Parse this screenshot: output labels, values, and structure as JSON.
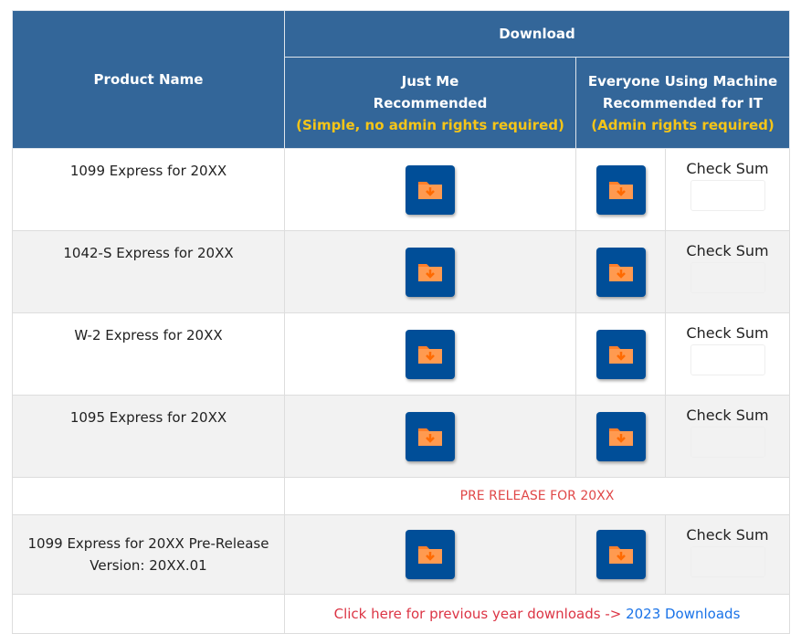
{
  "header": {
    "product_name": "Product Name",
    "download": "Download",
    "just_me": {
      "line1": "Just Me",
      "line2": "Recommended",
      "note": "(Simple, no admin rights required)"
    },
    "everyone": {
      "line1": "Everyone Using Machine",
      "line2": "Recommended for IT",
      "note": "(Admin rights required)"
    }
  },
  "rows": [
    {
      "name": "1099 Express for 20XX",
      "checksum": "Check Sum"
    },
    {
      "name": "1042-S Express for 20XX",
      "checksum": "Check Sum"
    },
    {
      "name": "W-2 Express for 20XX",
      "checksum": "Check Sum"
    },
    {
      "name": "1095 Express for 20XX",
      "checksum": "Check Sum"
    }
  ],
  "prerelease_banner": "PRE RELEASE FOR 20XX",
  "prerelease_row": {
    "name": "1099 Express for 20XX Pre-Release",
    "version": "Version: 20XX.01",
    "checksum": "Check Sum"
  },
  "footer": {
    "text": "Click here for previous year downloads -> ",
    "link": "2023 Downloads"
  },
  "icons": {
    "download": "folder-download-icon"
  },
  "colors": {
    "header_bg": "#336699",
    "note": "#f5c518",
    "button_bg": "#004e98",
    "folder": "#ff7f2a",
    "prerelease": "#e04848",
    "link": "#1a73e8"
  }
}
